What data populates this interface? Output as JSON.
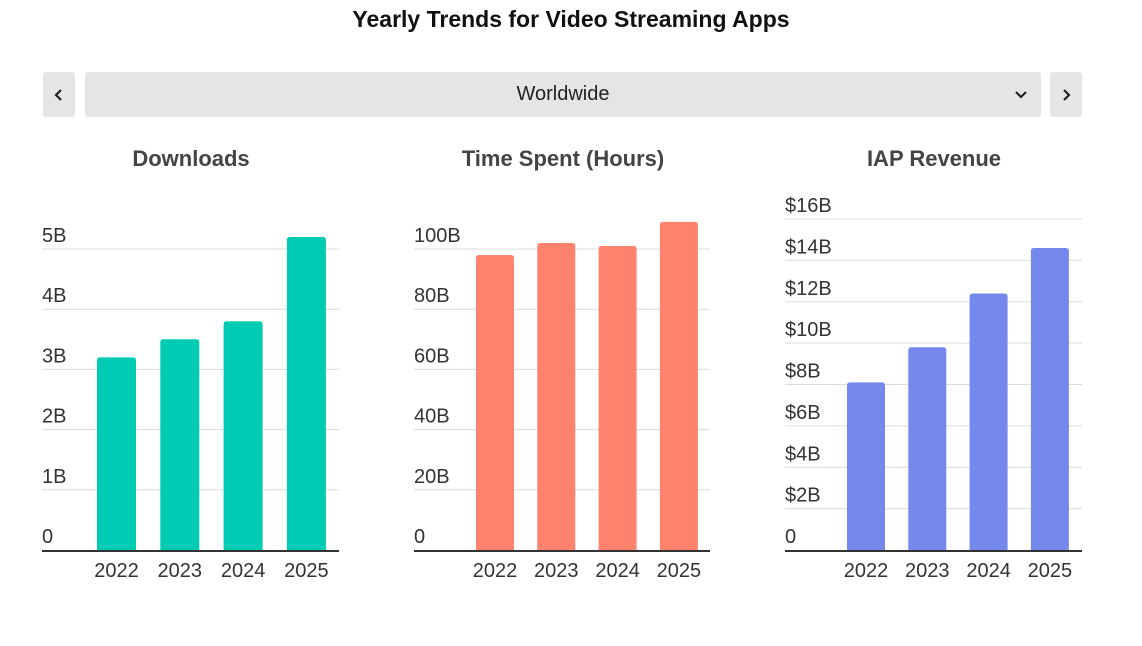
{
  "page": {
    "title": "Yearly Trends for Video Streaming Apps",
    "region_selector": {
      "selected": "Worldwide",
      "prev_icon": "chevron-left-icon",
      "next_icon": "chevron-right-icon",
      "dropdown_icon": "chevron-down-icon"
    }
  },
  "chart_data": [
    {
      "type": "bar",
      "title": "Downloads",
      "categories": [
        "2022",
        "2023",
        "2024",
        "2025"
      ],
      "values": [
        3.2,
        3.5,
        3.8,
        5.2
      ],
      "unit": "B",
      "yticks": [
        0,
        1,
        2,
        3,
        4,
        5
      ],
      "ytick_labels": [
        "0",
        "1B",
        "2B",
        "3B",
        "4B",
        "5B"
      ],
      "ylim": [
        0,
        5.3
      ],
      "xlabel": "",
      "ylabel": "",
      "grid": true,
      "color": "#00CCB4"
    },
    {
      "type": "bar",
      "title": "Time Spent (Hours)",
      "categories": [
        "2022",
        "2023",
        "2024",
        "2025"
      ],
      "values": [
        98,
        102,
        101,
        109
      ],
      "unit": "B",
      "yticks": [
        0,
        20,
        40,
        60,
        80,
        100
      ],
      "ytick_labels": [
        "0",
        "20B",
        "40B",
        "60B",
        "80B",
        "100B"
      ],
      "ylim": [
        0,
        106
      ],
      "xlabel": "",
      "ylabel": "",
      "grid": true,
      "color": "#FF826C"
    },
    {
      "type": "bar",
      "title": "IAP Revenue",
      "categories": [
        "2022",
        "2023",
        "2024",
        "2025"
      ],
      "values": [
        8.1,
        9.8,
        12.4,
        14.6
      ],
      "unit": "$B",
      "yticks": [
        0,
        2,
        4,
        6,
        8,
        10,
        12,
        14,
        16
      ],
      "ytick_labels": [
        "0",
        "$2B",
        "$4B",
        "$6B",
        "$8B",
        "$10B",
        "$12B",
        "$14B",
        "$16B"
      ],
      "ylim": [
        0,
        16
      ],
      "xlabel": "",
      "ylabel": "",
      "grid": true,
      "color": "#7489EB"
    }
  ]
}
